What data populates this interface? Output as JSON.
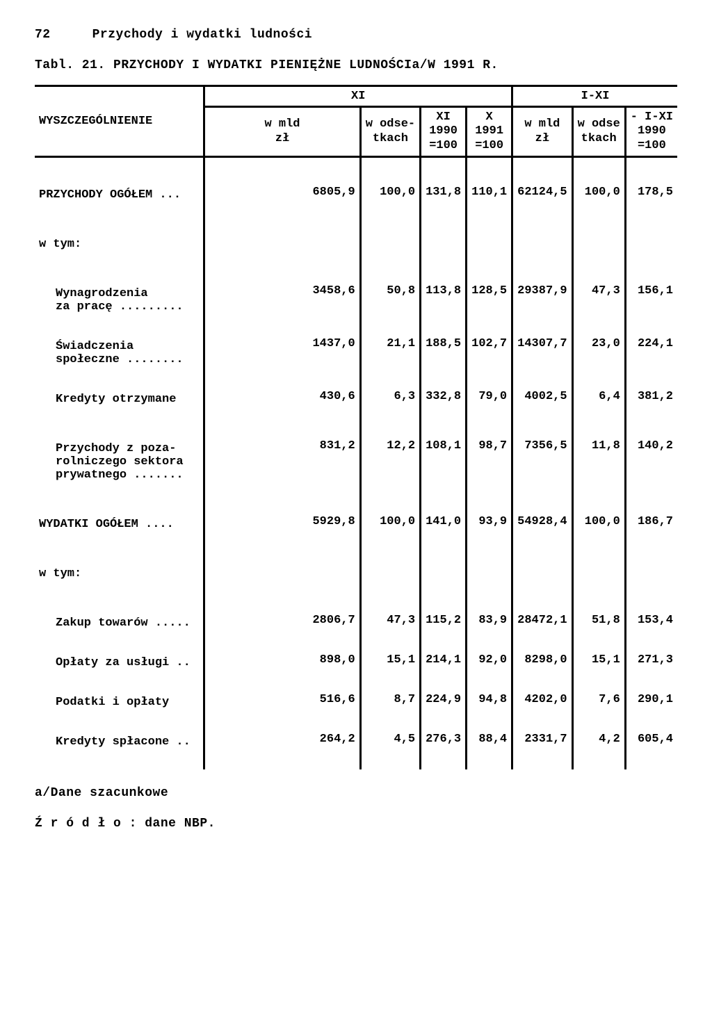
{
  "page": {
    "number": "72",
    "section_title": "Przychody i wydatki ludności"
  },
  "table": {
    "title": "Tabl. 21. PRZYCHODY I WYDATKI PIENIĘŻNE LUDNOŚCIa/W 1991 R.",
    "header": {
      "span_xi": "XI",
      "span_ixi": "I-XI",
      "col_label": "WYSZCZEGÓLNIENIE",
      "c1": "w mld\nzł",
      "c2": "w odse-\ntkach",
      "c3": "XI\n1990\n=100",
      "c4": "X\n1991\n=100",
      "c5": "w mld\nzł",
      "c6": "w odse\ntkach",
      "c7": "- I-XI\n1990\n=100"
    },
    "rows": [
      {
        "label": "PRZYCHODY OGÓŁEM ...",
        "v": [
          "6805,9",
          "100,0",
          "131,8",
          "110,1",
          "62124,5",
          "100,0",
          "178,5"
        ]
      },
      {
        "label": "w tym:",
        "v": [
          "",
          "",
          "",
          "",
          "",
          "",
          ""
        ]
      },
      {
        "label": "Wynagrodzenia\nza pracę .........",
        "v": [
          "3458,6",
          "50,8",
          "113,8",
          "128,5",
          "29387,9",
          "47,3",
          "156,1"
        ],
        "indent": true
      },
      {
        "label": "Świadczenia\nspołeczne ........",
        "v": [
          "1437,0",
          "21,1",
          "188,5",
          "102,7",
          "14307,7",
          "23,0",
          "224,1"
        ],
        "indent": true
      },
      {
        "label": "Kredyty otrzymane",
        "v": [
          "430,6",
          "6,3",
          "332,8",
          "79,0",
          "4002,5",
          "6,4",
          "381,2"
        ],
        "indent": true
      },
      {
        "label": "Przychody z poza-\nrolniczego sektora\nprywatnego .......",
        "v": [
          "831,2",
          "12,2",
          "108,1",
          "98,7",
          "7356,5",
          "11,8",
          "140,2"
        ],
        "indent": true
      },
      {
        "label": "WYDATKI OGÓŁEM ....",
        "v": [
          "5929,8",
          "100,0",
          "141,0",
          "93,9",
          "54928,4",
          "100,0",
          "186,7"
        ]
      },
      {
        "label": "w tym:",
        "v": [
          "",
          "",
          "",
          "",
          "",
          "",
          ""
        ]
      },
      {
        "label": "Zakup towarów .....",
        "v": [
          "2806,7",
          "47,3",
          "115,2",
          "83,9",
          "28472,1",
          "51,8",
          "153,4"
        ],
        "indent": true
      },
      {
        "label": "Opłaty za usługi ..",
        "v": [
          "898,0",
          "15,1",
          "214,1",
          "92,0",
          "8298,0",
          "15,1",
          "271,3"
        ],
        "indent": true
      },
      {
        "label": "Podatki i opłaty",
        "v": [
          "516,6",
          "8,7",
          "224,9",
          "94,8",
          "4202,0",
          "7,6",
          "290,1"
        ],
        "indent": true
      },
      {
        "label": "Kredyty spłacone ..",
        "v": [
          "264,2",
          "4,5",
          "276,3",
          "88,4",
          "2331,7",
          "4,2",
          "605,4"
        ],
        "indent": true
      }
    ],
    "footnote1": "a/Dane szacunkowe",
    "footnote2": "Ź r ó d ł o : dane NBP."
  }
}
